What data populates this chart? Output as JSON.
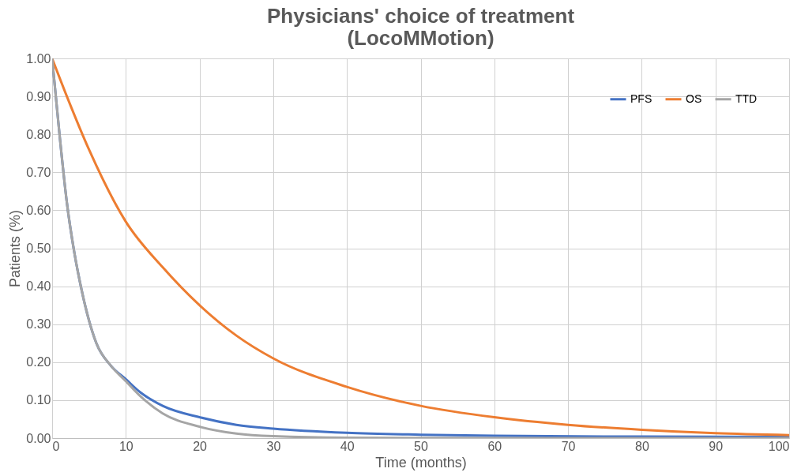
{
  "chart_data": {
    "type": "line",
    "title": [
      "Physicians' choice of treatment",
      "(LocoMMotion)"
    ],
    "xlabel": "Time (months)",
    "ylabel": "Patients (%)",
    "xlim": [
      0,
      100
    ],
    "xticks": [
      0,
      10,
      20,
      30,
      40,
      50,
      60,
      70,
      80,
      90,
      100
    ],
    "ylim": [
      0,
      1
    ],
    "yticks": [
      {
        "value": 0,
        "label": "0.00"
      },
      {
        "value": 0.1,
        "label": "0.10"
      },
      {
        "value": 0.2,
        "label": "0.20"
      },
      {
        "value": 0.3,
        "label": "0.30"
      },
      {
        "value": 0.4,
        "label": "0.40"
      },
      {
        "value": 0.5,
        "label": "0.50"
      },
      {
        "value": 0.6,
        "label": "0.60"
      },
      {
        "value": 0.7,
        "label": "0.70"
      },
      {
        "value": 0.8,
        "label": "0.80"
      },
      {
        "value": 0.9,
        "label": "0.90"
      },
      {
        "value": 1,
        "label": "1.00"
      }
    ],
    "grid": true,
    "legend": "top right",
    "marker": "none",
    "line_style": "solid",
    "series": [
      {
        "name": "PFS",
        "color": "#4472c4",
        "x": [
          0,
          1,
          2,
          3,
          4,
          5,
          6,
          8,
          10,
          12,
          15,
          20,
          25,
          30,
          40,
          50,
          60,
          80,
          100
        ],
        "values": [
          1.0,
          0.8,
          0.62,
          0.49,
          0.39,
          0.31,
          0.25,
          0.19,
          0.155,
          0.12,
          0.085,
          0.055,
          0.035,
          0.025,
          0.014,
          0.009,
          0.006,
          0.004,
          0.003
        ]
      },
      {
        "name": "OS",
        "color": "#ed7d31",
        "x": [
          0,
          2,
          5,
          10,
          15,
          20,
          25,
          30,
          40,
          50,
          60,
          70,
          80,
          90,
          100
        ],
        "values": [
          1.0,
          0.9,
          0.76,
          0.57,
          0.45,
          0.35,
          0.27,
          0.21,
          0.135,
          0.085,
          0.055,
          0.035,
          0.022,
          0.013,
          0.008
        ]
      },
      {
        "name": "TTD",
        "color": "#a5a5a5",
        "x": [
          0,
          1,
          2,
          3,
          4,
          5,
          6,
          8,
          10,
          12,
          15,
          20,
          25,
          30,
          40,
          60,
          100
        ],
        "values": [
          1.0,
          0.8,
          0.62,
          0.49,
          0.39,
          0.31,
          0.25,
          0.19,
          0.15,
          0.11,
          0.065,
          0.03,
          0.012,
          0.005,
          0.001,
          0,
          0
        ]
      }
    ]
  }
}
